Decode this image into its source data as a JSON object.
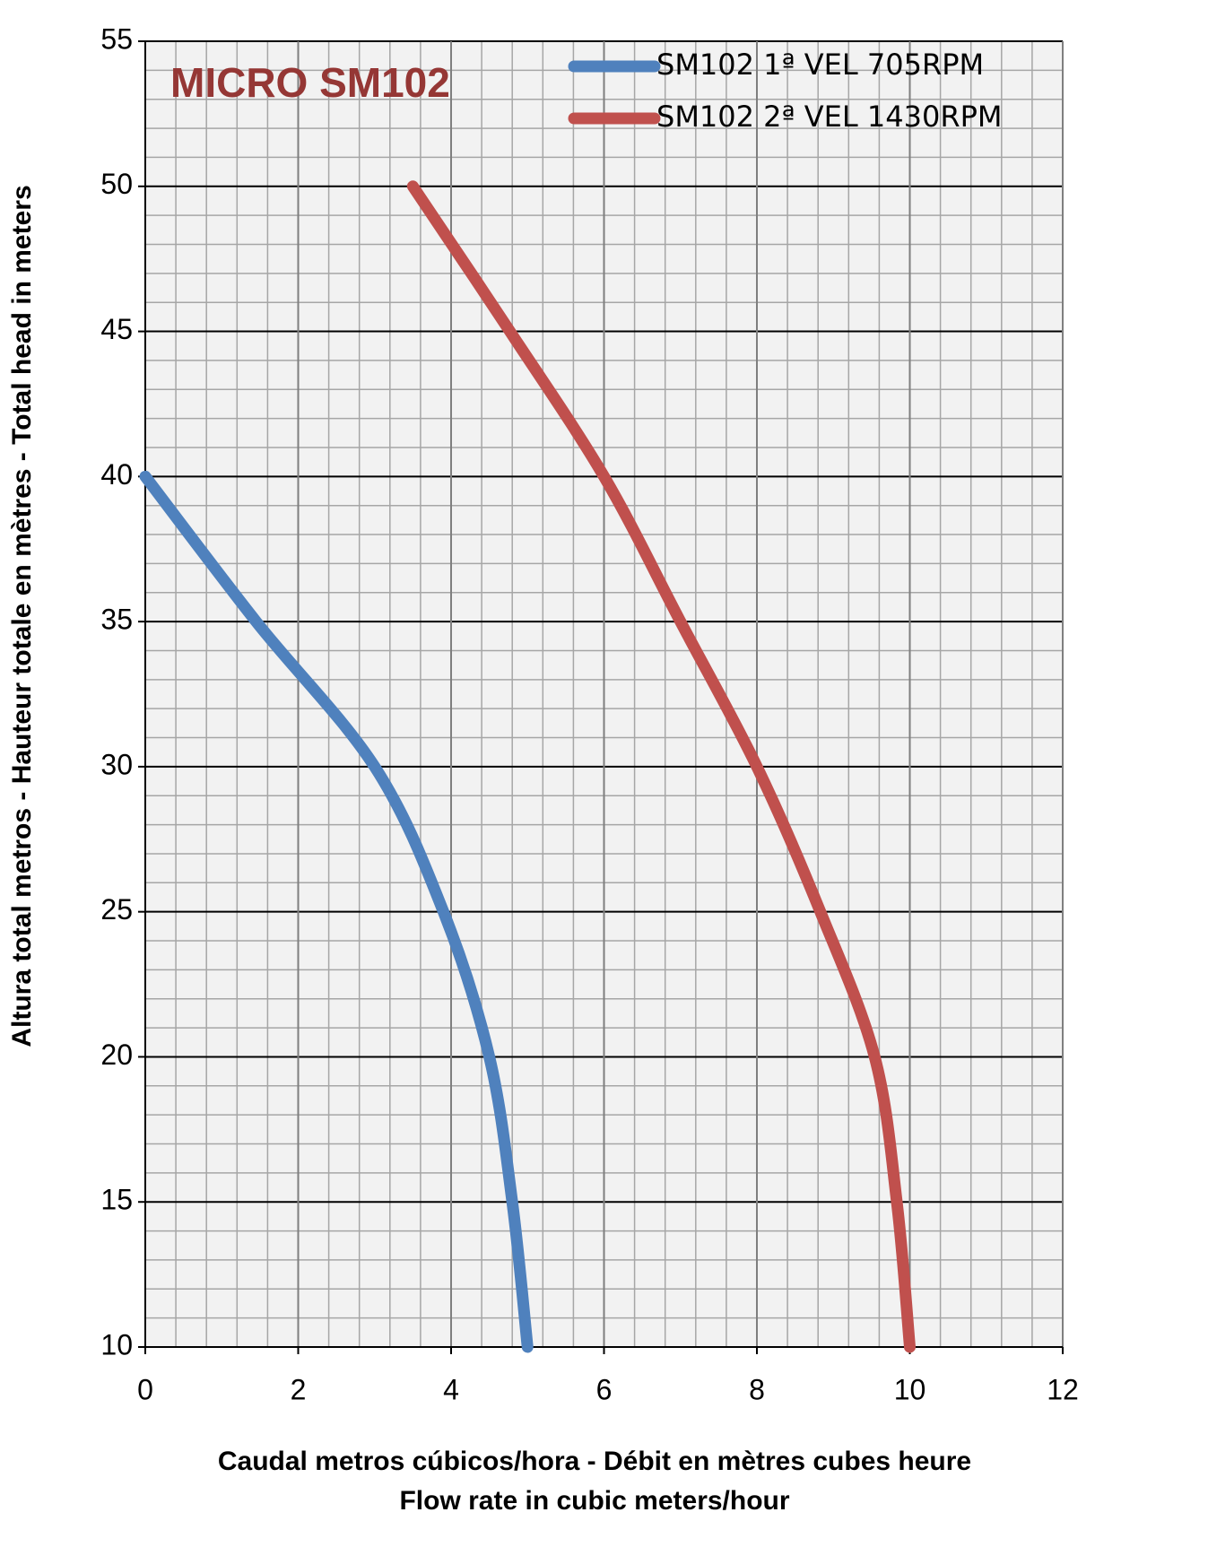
{
  "chart_data": {
    "type": "line",
    "title": "MICRO SM102",
    "xlabel": [
      "Caudal metros cúbicos/hora - Débit en mètres cubes heure",
      "Flow rate in cubic meters/hour"
    ],
    "ylabel": "Altura total metros - Hauteur totale en mètres - Total head in meters",
    "xlim": [
      0,
      12
    ],
    "xticks": [
      0,
      2,
      4,
      6,
      8,
      10,
      12
    ],
    "ylim": [
      10,
      55
    ],
    "yticks": [
      10,
      15,
      20,
      25,
      30,
      35,
      40,
      45,
      50,
      55
    ],
    "grid": true,
    "legend": "top-right",
    "series": [
      {
        "name": "SM102 1ª VEL 705RPM",
        "color": "#4f81bd",
        "x": [
          0,
          1.45,
          3.0,
          3.9,
          4.5,
          4.8,
          5.0
        ],
        "values": [
          40,
          35,
          30,
          25,
          20,
          15,
          10
        ]
      },
      {
        "name": "SM102 2ª VEL 1430RPM",
        "color": "#c0504d",
        "x": [
          3.5,
          4.77,
          6.0,
          7.0,
          8.0,
          8.83,
          9.54,
          9.83,
          10.0
        ],
        "values": [
          50,
          45,
          40,
          35,
          30,
          25,
          20,
          15,
          10
        ]
      }
    ]
  }
}
